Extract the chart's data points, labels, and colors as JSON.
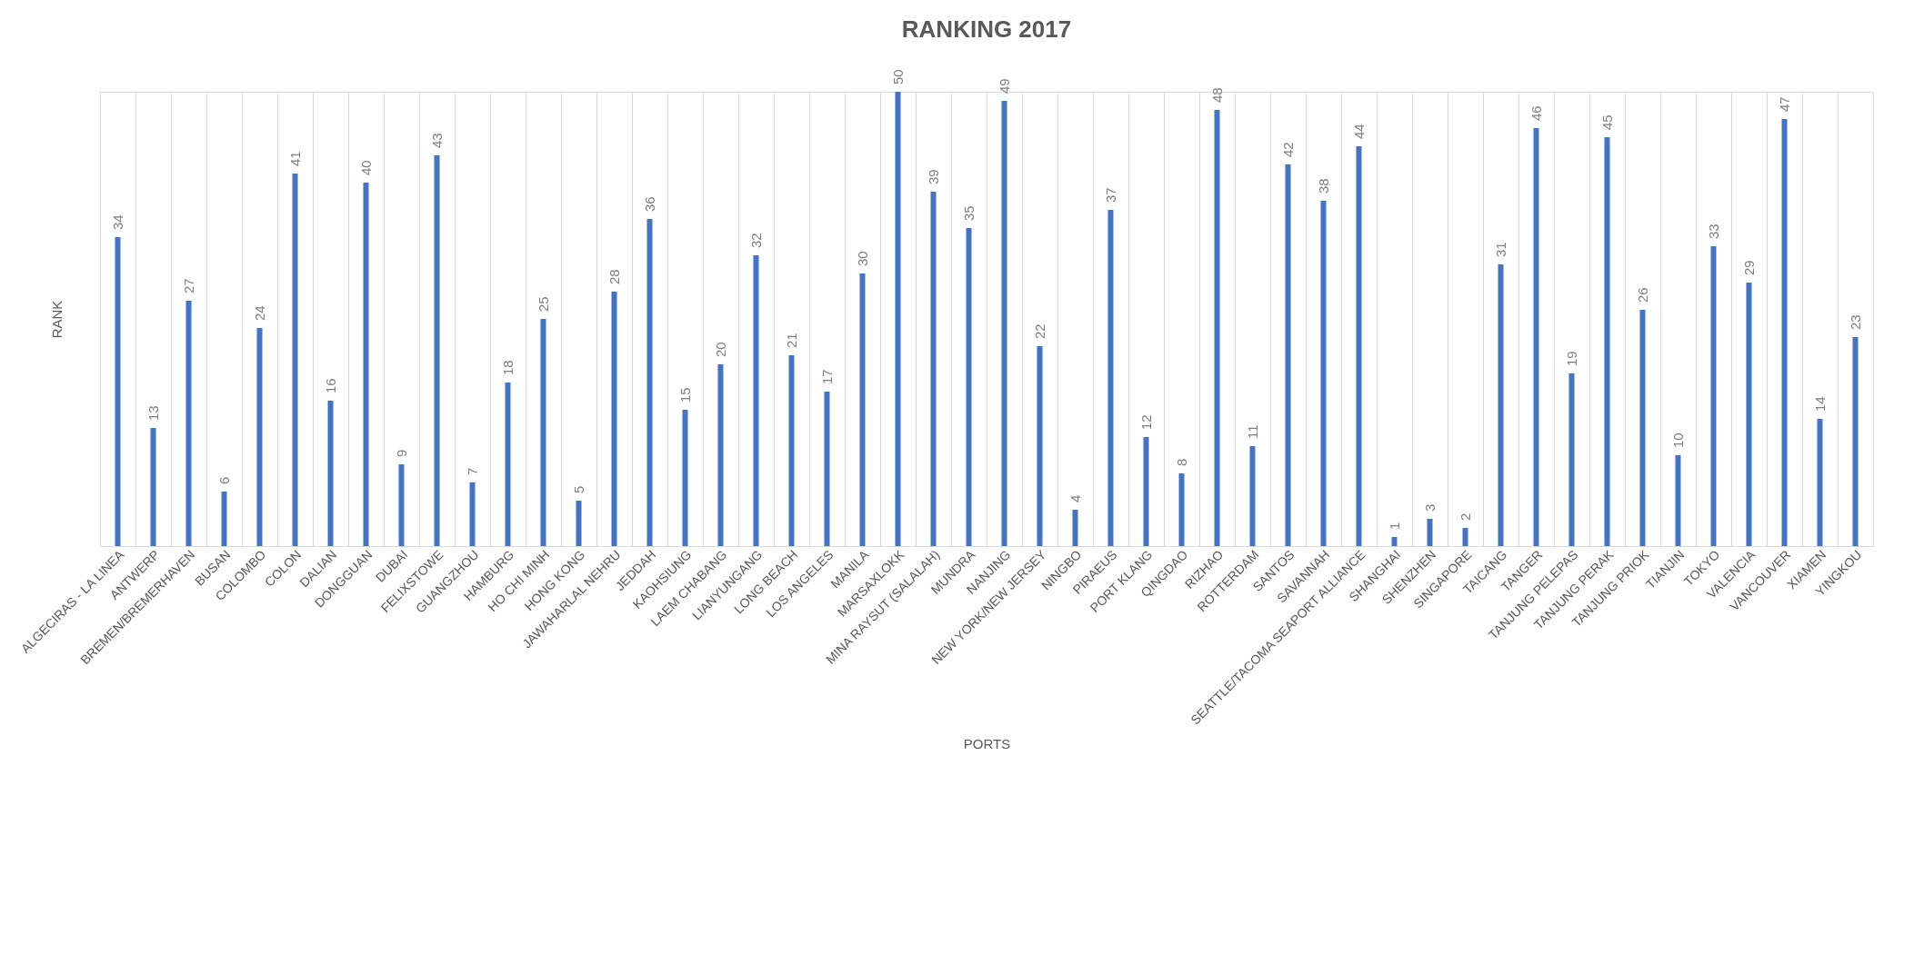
{
  "chart_data": {
    "type": "bar",
    "title": "RANKING  2017",
    "xlabel": "PORTS",
    "ylabel": "RANK",
    "categories": [
      "ALGECIRAS - LA LINEA",
      "ANTWERP",
      "BREMEN/BREMERHAVEN",
      "BUSAN",
      "COLOMBO",
      "COLON",
      "DALIAN",
      "DONGGUAN",
      "DUBAI",
      "FELIXSTOWE",
      "GUANGZHOU",
      "HAMBURG",
      "HO CHI MINH",
      "HONG KONG",
      "JAWAHARLAL NEHRU",
      "JEDDAH",
      "KAOHSIUNG",
      "LAEM CHABANG",
      "LIANYUNGANG",
      "LONG BEACH",
      "LOS ANGELES",
      "MANILA",
      "MARSAXLOKK",
      "MINA RAYSUT (SALALAH)",
      "MUNDRA",
      "NANJING",
      "NEW YORK/NEW JERSEY",
      "NINGBO",
      "PIRAEUS",
      "PORT KLANG",
      "QINGDAO",
      "RIZHAO",
      "ROTTERDAM",
      "SANTOS",
      "SAVANNAH",
      "SEATTLE/TACOMA SEAPORT ALLIANCE",
      "SHANGHAI",
      "SHENZHEN",
      "SINGAPORE",
      "TAICANG",
      "TANGER",
      "TANJUNG PELEPAS",
      "TANJUNG PERAK",
      "TANJUNG PRIOK",
      "TIANJIN",
      "TOKYO",
      "VALENCIA",
      "VANCOUVER",
      "XIAMEN",
      "YINGKOU"
    ],
    "values": [
      34,
      13,
      27,
      6,
      24,
      41,
      16,
      40,
      9,
      43,
      7,
      18,
      25,
      5,
      28,
      36,
      15,
      20,
      32,
      21,
      17,
      30,
      50,
      39,
      35,
      49,
      22,
      4,
      37,
      12,
      8,
      48,
      11,
      42,
      38,
      44,
      1,
      3,
      2,
      31,
      46,
      19,
      45,
      26,
      10,
      33,
      29,
      47,
      14,
      23
    ],
    "color": "#4472c4",
    "data_labels": true,
    "grid": "x"
  }
}
